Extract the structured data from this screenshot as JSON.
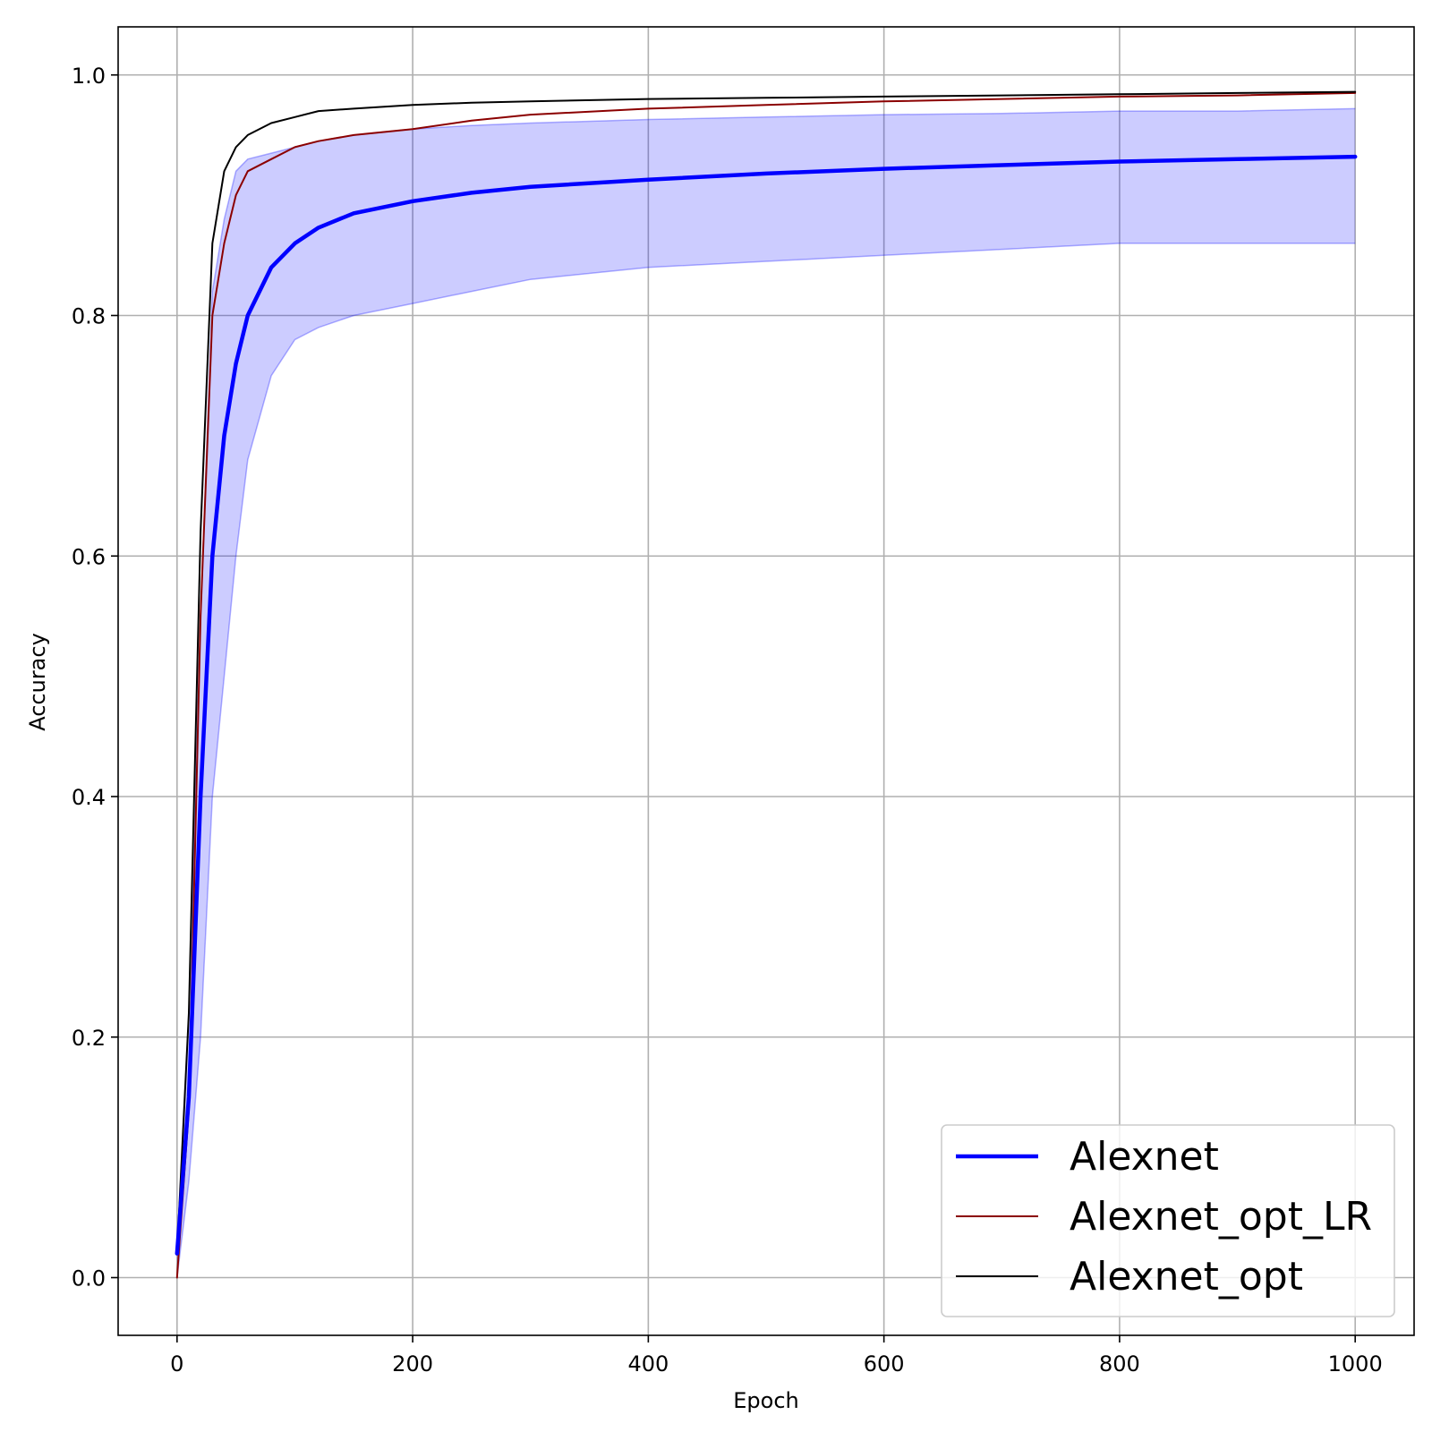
{
  "chart_data": {
    "type": "line",
    "xlabel": "Epoch",
    "ylabel": "Accuracy",
    "xlim": [
      -50,
      1050
    ],
    "ylim": [
      -0.048,
      1.04
    ],
    "x_ticks": [
      0,
      200,
      400,
      600,
      800,
      1000
    ],
    "y_ticks": [
      0.0,
      0.2,
      0.4,
      0.6,
      0.8,
      1.0
    ],
    "x_tick_labels": [
      "0",
      "200",
      "400",
      "600",
      "800",
      "1000"
    ],
    "y_tick_labels": [
      "0.0",
      "0.2",
      "0.4",
      "0.6",
      "0.8",
      "1.0"
    ],
    "grid": true,
    "legend_position": "bottom-right",
    "x": [
      0,
      10,
      20,
      30,
      40,
      50,
      60,
      80,
      100,
      120,
      150,
      200,
      250,
      300,
      400,
      500,
      600,
      700,
      800,
      900,
      1000
    ],
    "series": [
      {
        "name": "Alexnet",
        "color": "#0000ff",
        "values": [
          0.02,
          0.15,
          0.4,
          0.6,
          0.7,
          0.76,
          0.8,
          0.84,
          0.86,
          0.873,
          0.885,
          0.895,
          0.902,
          0.907,
          0.913,
          0.918,
          0.922,
          0.925,
          0.928,
          0.93,
          0.932
        ]
      },
      {
        "name": "Alexnet_opt_LR",
        "color": "#8b0000",
        "values": [
          0.0,
          0.14,
          0.55,
          0.8,
          0.86,
          0.9,
          0.92,
          0.93,
          0.94,
          0.945,
          0.95,
          0.955,
          0.962,
          0.967,
          0.972,
          0.975,
          0.978,
          0.98,
          0.982,
          0.983,
          0.985
        ]
      },
      {
        "name": "Alexnet_opt",
        "color": "#000000",
        "values": [
          0.02,
          0.22,
          0.62,
          0.86,
          0.92,
          0.94,
          0.95,
          0.96,
          0.965,
          0.97,
          0.972,
          0.975,
          0.977,
          0.978,
          0.98,
          0.981,
          0.982,
          0.983,
          0.984,
          0.985,
          0.986
        ]
      }
    ],
    "band": {
      "color": "#0000ff",
      "lower": [
        0.0,
        0.08,
        0.2,
        0.4,
        0.5,
        0.6,
        0.68,
        0.75,
        0.78,
        0.79,
        0.8,
        0.81,
        0.82,
        0.83,
        0.84,
        0.845,
        0.85,
        0.855,
        0.86,
        0.86,
        0.86
      ],
      "upper": [
        0.02,
        0.22,
        0.55,
        0.82,
        0.88,
        0.92,
        0.93,
        0.935,
        0.94,
        0.945,
        0.95,
        0.955,
        0.958,
        0.96,
        0.963,
        0.965,
        0.967,
        0.968,
        0.97,
        0.97,
        0.972
      ]
    }
  }
}
